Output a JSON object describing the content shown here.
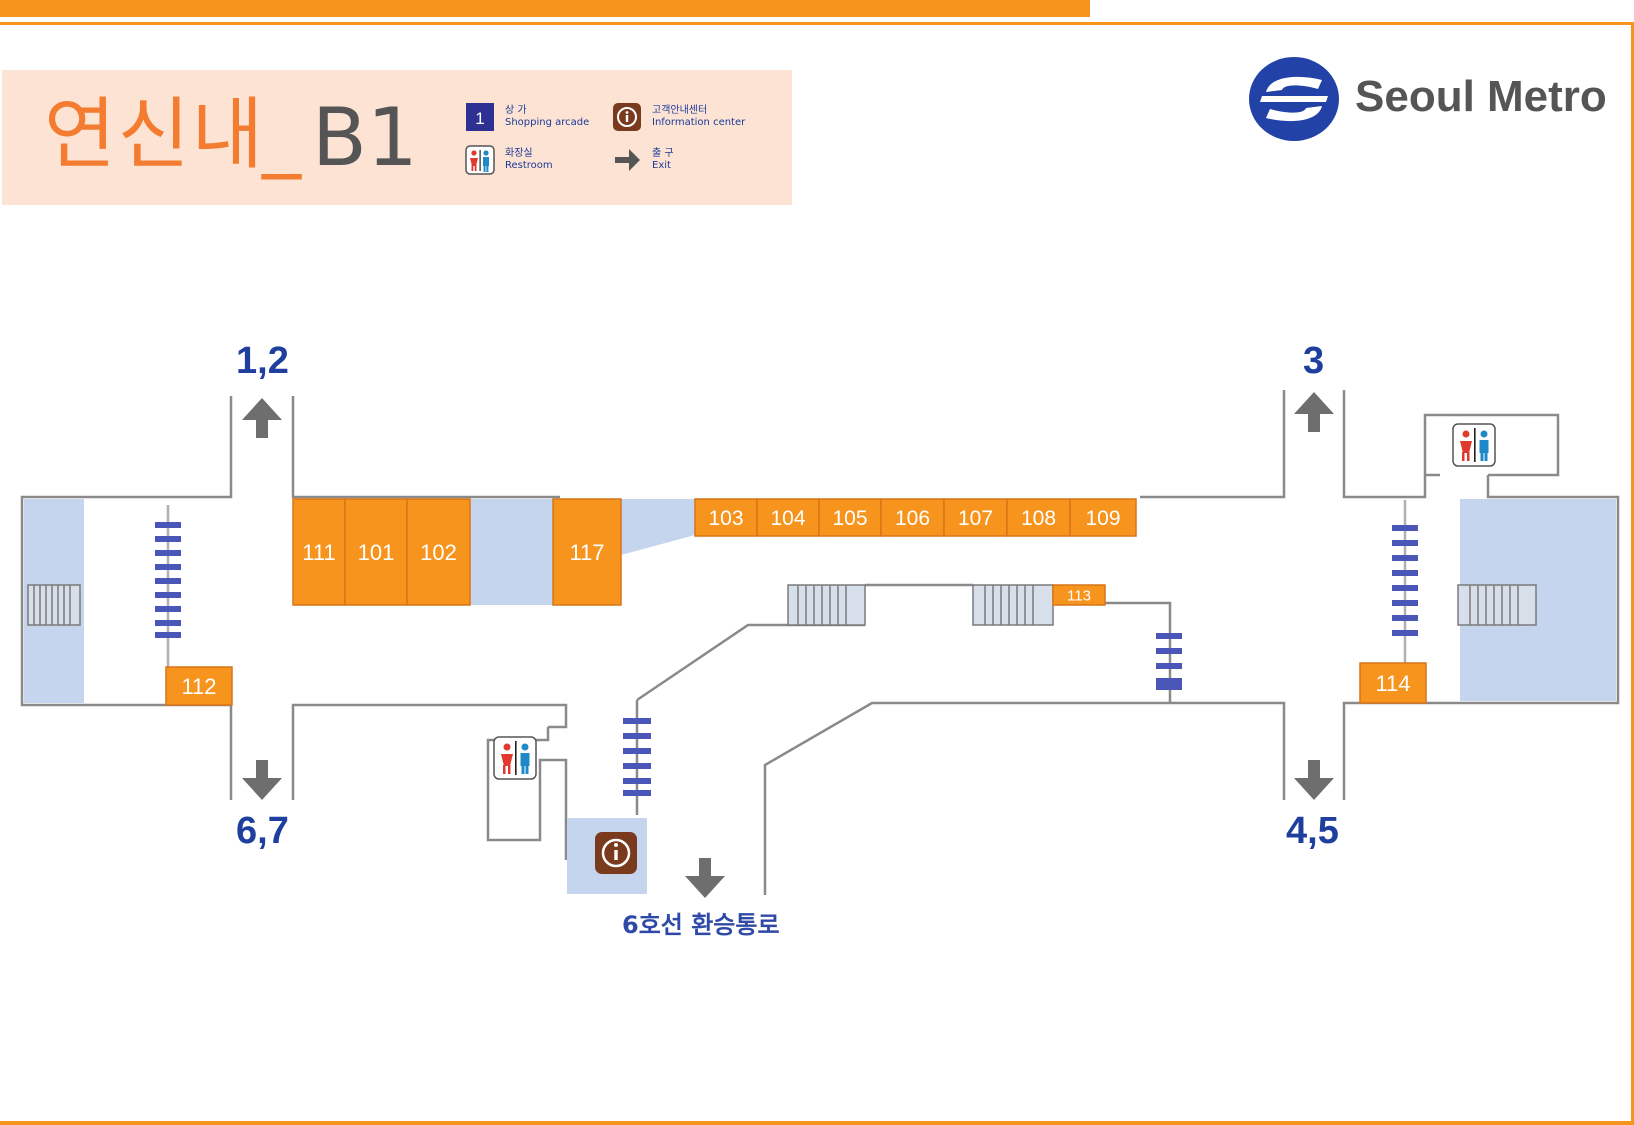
{
  "header": {
    "station_name": "연신내",
    "separator": "_",
    "floor": "B1"
  },
  "legend": {
    "shopping": {
      "ko": "상 가",
      "en": "Shopping arcade",
      "badge": "1"
    },
    "info": {
      "ko": "고객안내센터",
      "en": "Information center"
    },
    "restroom": {
      "ko": "화장실",
      "en": "Restroom"
    },
    "exit": {
      "ko": "출 구",
      "en": "Exit"
    }
  },
  "logo": {
    "text": "Seoul Metro"
  },
  "exits": {
    "top_left": "1,2",
    "top_right": "3",
    "bottom_left": "6,7",
    "bottom_right": "4,5"
  },
  "transfer": {
    "label": "6호선 환승통로"
  },
  "shops": [
    "111",
    "101",
    "102",
    "117",
    "103",
    "104",
    "105",
    "106",
    "107",
    "108",
    "109",
    "112",
    "113",
    "114"
  ],
  "colors": {
    "accent": "#f7941d",
    "shop": "#f7941d",
    "platform": "#c5d5ee",
    "stairs": "#4a56b8",
    "exit_text": "#1f3f9e",
    "info_icon": "#7a3a1e"
  },
  "icons": [
    "shop-badge-icon",
    "info-icon",
    "restroom-icon",
    "exit-arrow-icon",
    "seoul-metro-logo",
    "stairs-icon",
    "escalator-icon"
  ]
}
